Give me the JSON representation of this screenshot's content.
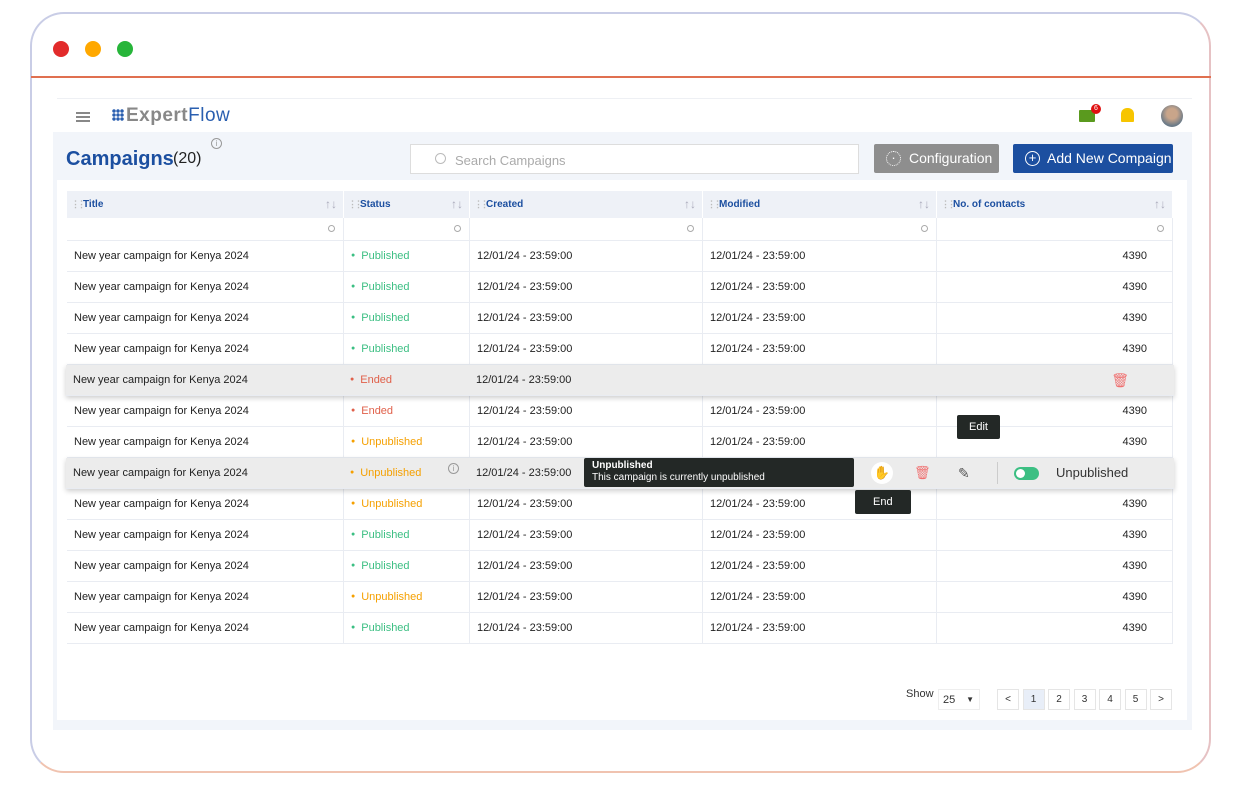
{
  "header": {
    "logo_a": "Expert",
    "logo_b": "Flow",
    "chat_badge": "6"
  },
  "page": {
    "title": "Campaigns",
    "count": "(20)",
    "search_placeholder": "Search Campaigns",
    "config_label": "Configuration",
    "add_label": "Add New Compaign"
  },
  "columns": [
    "Title",
    "Status",
    "Created",
    "Modified",
    "No. of contacts"
  ],
  "status_colors": {
    "Published": "#3cbf83",
    "Ended": "#e0604a",
    "Unpublished": "#f5a000"
  },
  "rows": [
    {
      "title": "New year campaign for Kenya 2024",
      "status": "Published",
      "created": "12/01/24 - 23:59:00",
      "modified": "12/01/24 - 23:59:00",
      "contacts": "4390"
    },
    {
      "title": "New year campaign for Kenya 2024",
      "status": "Published",
      "created": "12/01/24 - 23:59:00",
      "modified": "12/01/24 - 23:59:00",
      "contacts": "4390"
    },
    {
      "title": "New year campaign for Kenya 2024",
      "status": "Published",
      "created": "12/01/24 - 23:59:00",
      "modified": "12/01/24 - 23:59:00",
      "contacts": "4390"
    },
    {
      "title": "New year campaign for Kenya 2024",
      "status": "Published",
      "created": "12/01/24 - 23:59:00",
      "modified": "12/01/24 - 23:59:00",
      "contacts": "4390"
    },
    {
      "title": "New year campaign for Kenya 2024",
      "status": "Ended",
      "created": "12/01/24 - 23:59:00",
      "modified": "",
      "contacts": "",
      "hover": "ended"
    },
    {
      "title": "New year campaign for Kenya 2024",
      "status": "Ended",
      "created": "12/01/24 - 23:59:00",
      "modified": "12/01/24 - 23:59:00",
      "contacts": "4390"
    },
    {
      "title": "New year campaign for Kenya 2024",
      "status": "Unpublished",
      "created": "12/01/24 - 23:59:00",
      "modified": "12/01/24 - 23:59:00",
      "contacts": "4390"
    },
    {
      "title": "New year campaign for Kenya 2024",
      "status": "Unpublished",
      "created": "12/01/24 - 23:59:00",
      "modified": "",
      "contacts": "",
      "hover": "unpub"
    },
    {
      "title": "New year campaign for Kenya 2024",
      "status": "Unpublished",
      "created": "12/01/24 - 23:59:00",
      "modified": "12/01/24 - 23:59:00",
      "contacts": "4390"
    },
    {
      "title": "New year campaign for Kenya 2024",
      "status": "Published",
      "created": "12/01/24 - 23:59:00",
      "modified": "12/01/24 - 23:59:00",
      "contacts": "4390"
    },
    {
      "title": "New year campaign for Kenya 2024",
      "status": "Published",
      "created": "12/01/24 - 23:59:00",
      "modified": "12/01/24 - 23:59:00",
      "contacts": "4390"
    },
    {
      "title": "New year campaign for Kenya 2024",
      "status": "Unpublished",
      "created": "12/01/24 - 23:59:00",
      "modified": "12/01/24 - 23:59:00",
      "contacts": "4390"
    },
    {
      "title": "New year campaign for Kenya 2024",
      "status": "Published",
      "created": "12/01/24 - 23:59:00",
      "modified": "12/01/24 - 23:59:00",
      "contacts": "4390"
    }
  ],
  "row_actions": {
    "toggle_label": "Unpublished",
    "end_tip": "End",
    "edit_tip": "Edit"
  },
  "status_tip": {
    "title": "Unpublished",
    "text": "This campaign is currently unpublished"
  },
  "pagination": {
    "show_label": "Show",
    "page_size": "25",
    "prev": "<",
    "next": ">",
    "pages": [
      "1",
      "2",
      "3",
      "4",
      "5"
    ],
    "current": "1"
  }
}
